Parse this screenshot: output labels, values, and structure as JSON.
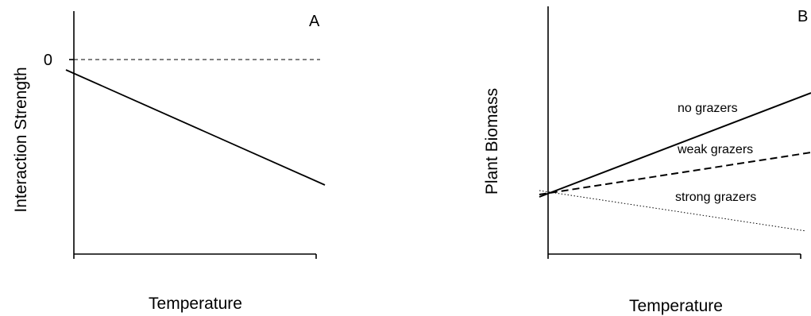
{
  "chart_data": [
    {
      "type": "line",
      "panel": "A",
      "xlabel": "Temperature",
      "ylabel": "Interaction Strength",
      "xlim": [
        0,
        1
      ],
      "ylim": [
        -1,
        0.2
      ],
      "y_tick_labels": [
        {
          "value": 0,
          "label": "0"
        }
      ],
      "reference_lines": [
        {
          "y": 0,
          "style": "dashed"
        }
      ],
      "series": [
        {
          "x": [
            0,
            1
          ],
          "values": [
            -0.05,
            -0.65
          ],
          "style": "solid"
        }
      ],
      "grid": false
    },
    {
      "type": "line",
      "panel": "B",
      "xlabel": "Temperature",
      "ylabel": "Plant Biomass",
      "xlim": [
        0,
        1
      ],
      "ylim": [
        0,
        1
      ],
      "series": [
        {
          "name": "no grazers",
          "x": [
            -0.03,
            1
          ],
          "values": [
            0.23,
            0.65
          ],
          "style": "solid"
        },
        {
          "name": "weak grazers",
          "x": [
            -0.03,
            1
          ],
          "values": [
            0.25,
            0.41
          ],
          "style": "dashed"
        },
        {
          "name": "strong grazers",
          "x": [
            -0.03,
            1
          ],
          "values": [
            0.26,
            0.1
          ],
          "style": "dotted"
        }
      ],
      "annotations": [
        {
          "text": "no grazers"
        },
        {
          "text": "weak grazers"
        },
        {
          "text": "strong grazers"
        }
      ],
      "grid": false
    }
  ]
}
